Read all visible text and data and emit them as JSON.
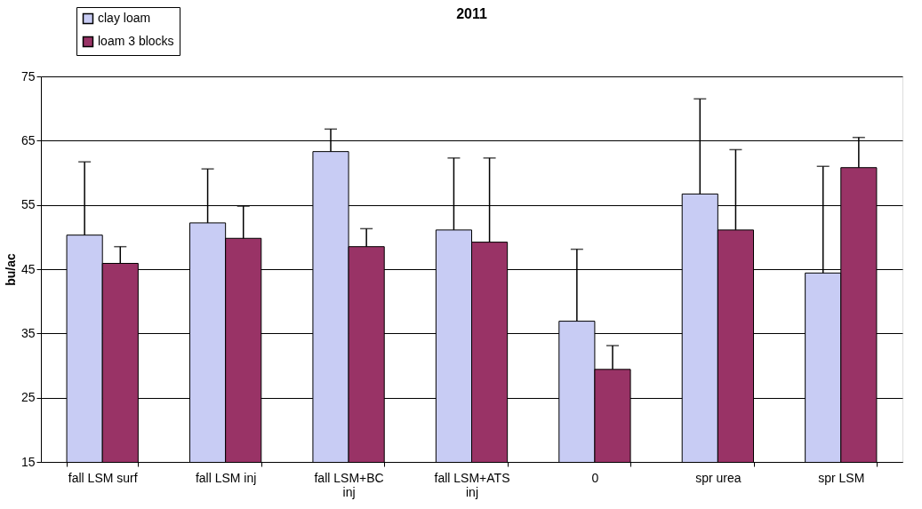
{
  "chart_data": {
    "type": "bar",
    "title": "2011",
    "ylabel": "bu/ac",
    "categories": [
      "fall LSM surf",
      "fall LSM inj",
      "fall LSM+BC inj",
      "fall LSM+ATS inj",
      "0",
      "spr urea",
      "spr LSM"
    ],
    "series": [
      {
        "name": "clay loam",
        "color": "#c8ccf4",
        "values": [
          50.3,
          52.2,
          63.3,
          51.1,
          36.9,
          56.7,
          44.4
        ],
        "errors": [
          [
            50.3,
            61.7
          ],
          [
            52.2,
            60.6
          ],
          [
            63.3,
            66.8
          ],
          [
            51.1,
            62.3
          ],
          [
            36.9,
            48.1
          ],
          [
            56.7,
            71.5
          ],
          [
            44.4,
            61.0
          ]
        ]
      },
      {
        "name": "loam 3 blocks",
        "color": "#993366",
        "values": [
          45.9,
          49.8,
          48.5,
          49.2,
          29.4,
          51.1,
          60.8
        ],
        "errors": [
          [
            45.9,
            48.5
          ],
          [
            49.8,
            54.8
          ],
          [
            48.5,
            51.3
          ],
          [
            49.2,
            62.3
          ],
          [
            29.4,
            33.1
          ],
          [
            51.1,
            63.6
          ],
          [
            60.8,
            65.5
          ]
        ]
      }
    ],
    "ylim": [
      15,
      75
    ],
    "yticks": [
      15,
      25,
      35,
      45,
      55,
      65,
      75
    ],
    "grid": "y",
    "legend": "top left"
  }
}
